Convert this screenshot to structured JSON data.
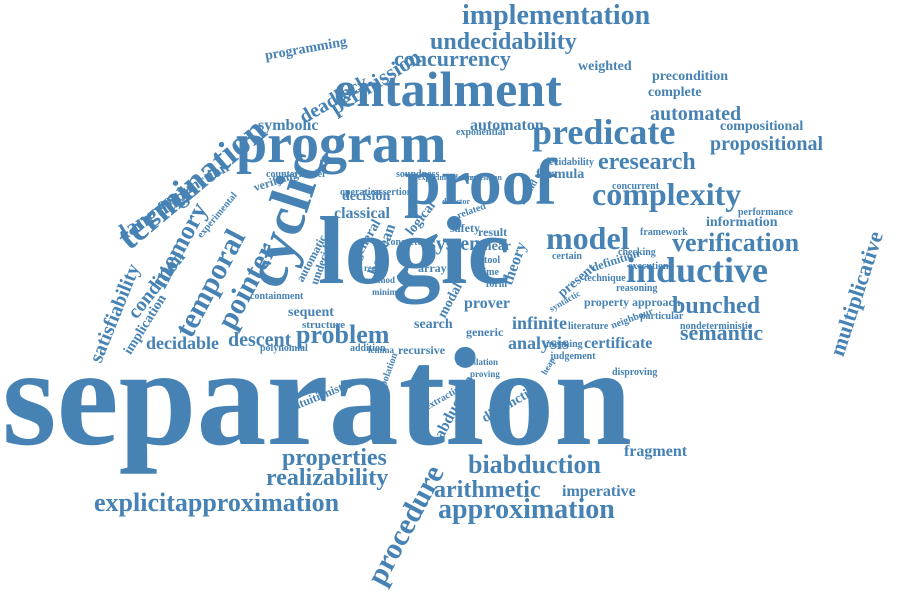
{
  "style": {
    "word_color": "#4682b4",
    "background": "#ffffff"
  },
  "words": [
    "separation",
    "logic",
    "proof",
    "program",
    "entailment",
    "cyclic",
    "predicate",
    "termination",
    "implementation",
    "undecidability",
    "concurrency",
    "permission",
    "deadlock",
    "programming",
    "precondition",
    "complete",
    "automated",
    "compositional",
    "propositional",
    "eresearch",
    "complexity",
    "model",
    "inductive",
    "verification",
    "bunched",
    "semantic",
    "multiplicative",
    "temporal",
    "pointer",
    "memory",
    "language",
    "conjunction",
    "satisfiability",
    "condition",
    "implication",
    "decidable",
    "descent",
    "problem",
    "symbolic",
    "automaton",
    "weighted",
    "exponential",
    "information",
    "properties",
    "realizability",
    "explicitapproximation",
    "biabduction",
    "procedure",
    "arithmetic",
    "approximation",
    "imperative",
    "fragment",
    "abduction",
    "disjunction",
    "intuitionistic",
    "analysis",
    "certificate",
    "infinite",
    "search",
    "generic",
    "prover",
    "modal",
    "system",
    "decision",
    "classical",
    "boolean",
    "logical",
    "linear",
    "theory",
    "property",
    "approach",
    "sequent",
    "structure",
    "polynomial",
    "addition",
    "recursive",
    "nondeterministic",
    "particular",
    "neighbour",
    "reasoning",
    "execution",
    "checking",
    "framework",
    "performance",
    "definition",
    "present",
    "disproving",
    "extracting",
    "result",
    "safety",
    "concurrent",
    "formula",
    "decidability",
    "soundness",
    "verifying",
    "countermodel",
    "operation",
    "assertion",
    "experimental",
    "array",
    "general",
    "concrete",
    "tool",
    "time",
    "form",
    "certain",
    "technique",
    "literature",
    "meaning",
    "judgement",
    "containment",
    "undecidable",
    "automatic",
    "interpolation",
    "experiment",
    "ordering",
    "extension",
    "detector",
    "related",
    "bound",
    "lemma",
    "region",
    "method",
    "minimal",
    "translation",
    "heap",
    "proving",
    "syntactic"
  ]
}
